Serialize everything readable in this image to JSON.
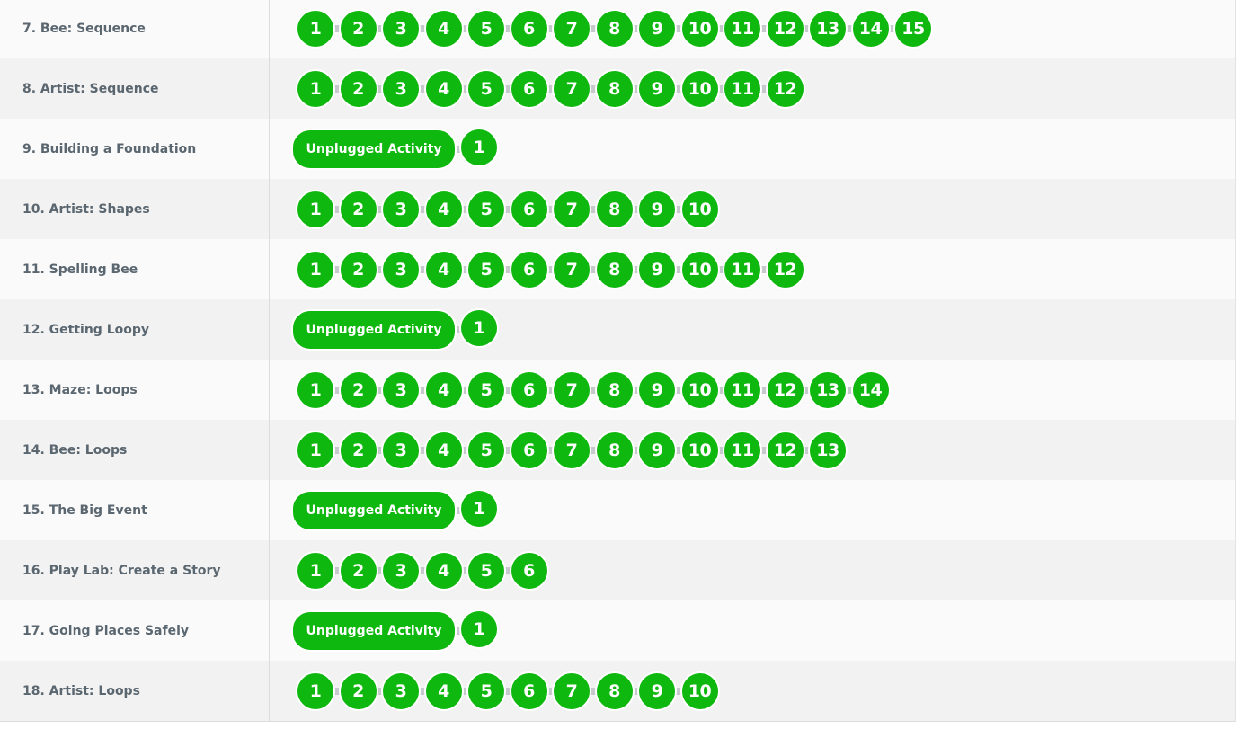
{
  "colors": {
    "level_complete": "#0fb80f",
    "connector": "#c6cacd",
    "row_odd": "#fafafa",
    "row_even": "#f2f2f2",
    "label_text": "#5b6770"
  },
  "stages": [
    {
      "name": "7. Bee: Sequence",
      "unplugged": false,
      "levels": [
        "1",
        "2",
        "3",
        "4",
        "5",
        "6",
        "7",
        "8",
        "9",
        "10",
        "11",
        "12",
        "13",
        "14",
        "15"
      ]
    },
    {
      "name": "8. Artist: Sequence",
      "unplugged": false,
      "levels": [
        "1",
        "2",
        "3",
        "4",
        "5",
        "6",
        "7",
        "8",
        "9",
        "10",
        "11",
        "12"
      ]
    },
    {
      "name": "9. Building a Foundation",
      "unplugged": true,
      "unplugged_label": "Unplugged Activity",
      "levels": [
        "1"
      ]
    },
    {
      "name": "10. Artist: Shapes",
      "unplugged": false,
      "levels": [
        "1",
        "2",
        "3",
        "4",
        "5",
        "6",
        "7",
        "8",
        "9",
        "10"
      ]
    },
    {
      "name": "11. Spelling Bee",
      "unplugged": false,
      "levels": [
        "1",
        "2",
        "3",
        "4",
        "5",
        "6",
        "7",
        "8",
        "9",
        "10",
        "11",
        "12"
      ]
    },
    {
      "name": "12. Getting Loopy",
      "unplugged": true,
      "unplugged_label": "Unplugged Activity",
      "levels": [
        "1"
      ]
    },
    {
      "name": "13. Maze: Loops",
      "unplugged": false,
      "levels": [
        "1",
        "2",
        "3",
        "4",
        "5",
        "6",
        "7",
        "8",
        "9",
        "10",
        "11",
        "12",
        "13",
        "14"
      ]
    },
    {
      "name": "14. Bee: Loops",
      "unplugged": false,
      "levels": [
        "1",
        "2",
        "3",
        "4",
        "5",
        "6",
        "7",
        "8",
        "9",
        "10",
        "11",
        "12",
        "13"
      ]
    },
    {
      "name": "15. The Big Event",
      "unplugged": true,
      "unplugged_label": "Unplugged Activity",
      "levels": [
        "1"
      ]
    },
    {
      "name": "16. Play Lab: Create a Story",
      "unplugged": false,
      "levels": [
        "1",
        "2",
        "3",
        "4",
        "5",
        "6"
      ]
    },
    {
      "name": "17. Going Places Safely",
      "unplugged": true,
      "unplugged_label": "Unplugged Activity",
      "levels": [
        "1"
      ]
    },
    {
      "name": "18. Artist: Loops",
      "unplugged": false,
      "levels": [
        "1",
        "2",
        "3",
        "4",
        "5",
        "6",
        "7",
        "8",
        "9",
        "10"
      ]
    }
  ]
}
